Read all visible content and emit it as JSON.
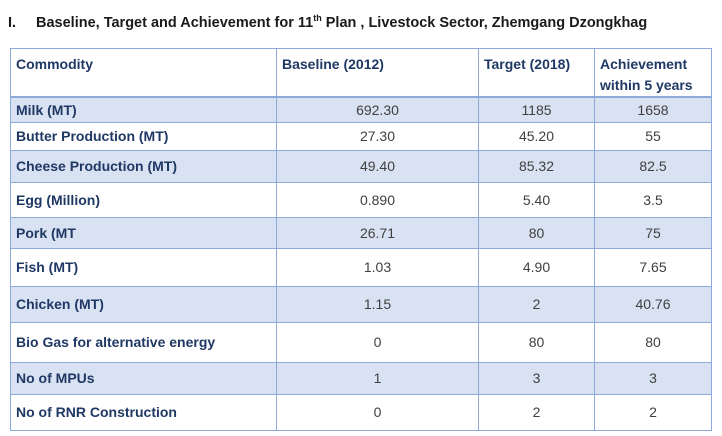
{
  "heading": {
    "number": "I.",
    "title_before": "Baseline, Target and Achievement for 11",
    "title_sup": "th",
    "title_after": " Plan , Livestock Sector, Zhemgang Dzongkhag"
  },
  "table": {
    "columns": [
      "Commodity",
      "Baseline (2012)",
      "Target (2018)",
      "Achievement within 5 years"
    ],
    "rows": [
      {
        "commodity": "Milk (MT)",
        "baseline": "692.30",
        "target": "1185",
        "achievement": "1658"
      },
      {
        "commodity": "Butter Production (MT)",
        "baseline": "27.30",
        "target": "45.20",
        "achievement": "55"
      },
      {
        "commodity": "Cheese Production (MT)",
        "baseline": "49.40",
        "target": "85.32",
        "achievement": "82.5"
      },
      {
        "commodity": "Egg (Million)",
        "baseline": "0.890",
        "target": "5.40",
        "achievement": "3.5"
      },
      {
        "commodity": "Pork (MT",
        "baseline": "26.71",
        "target": "80",
        "achievement": "75"
      },
      {
        "commodity": "Fish (MT)",
        "baseline": "1.03",
        "target": "4.90",
        "achievement": "7.65"
      },
      {
        "commodity": "Chicken (MT)",
        "baseline": "1.15",
        "target": "2",
        "achievement": "40.76"
      },
      {
        "commodity": "Bio Gas for alternative energy",
        "baseline": "0",
        "target": "80",
        "achievement": "80"
      },
      {
        "commodity": "No of MPUs",
        "baseline": "1",
        "target": "3",
        "achievement": "3"
      },
      {
        "commodity": "No of RNR Construction",
        "baseline": "0",
        "target": "2",
        "achievement": "2"
      }
    ]
  },
  "colors": {
    "header_text": "#1f3864",
    "row_shade": "#d9e2f3",
    "border": "#8eaadb",
    "value_text": "#404040"
  }
}
